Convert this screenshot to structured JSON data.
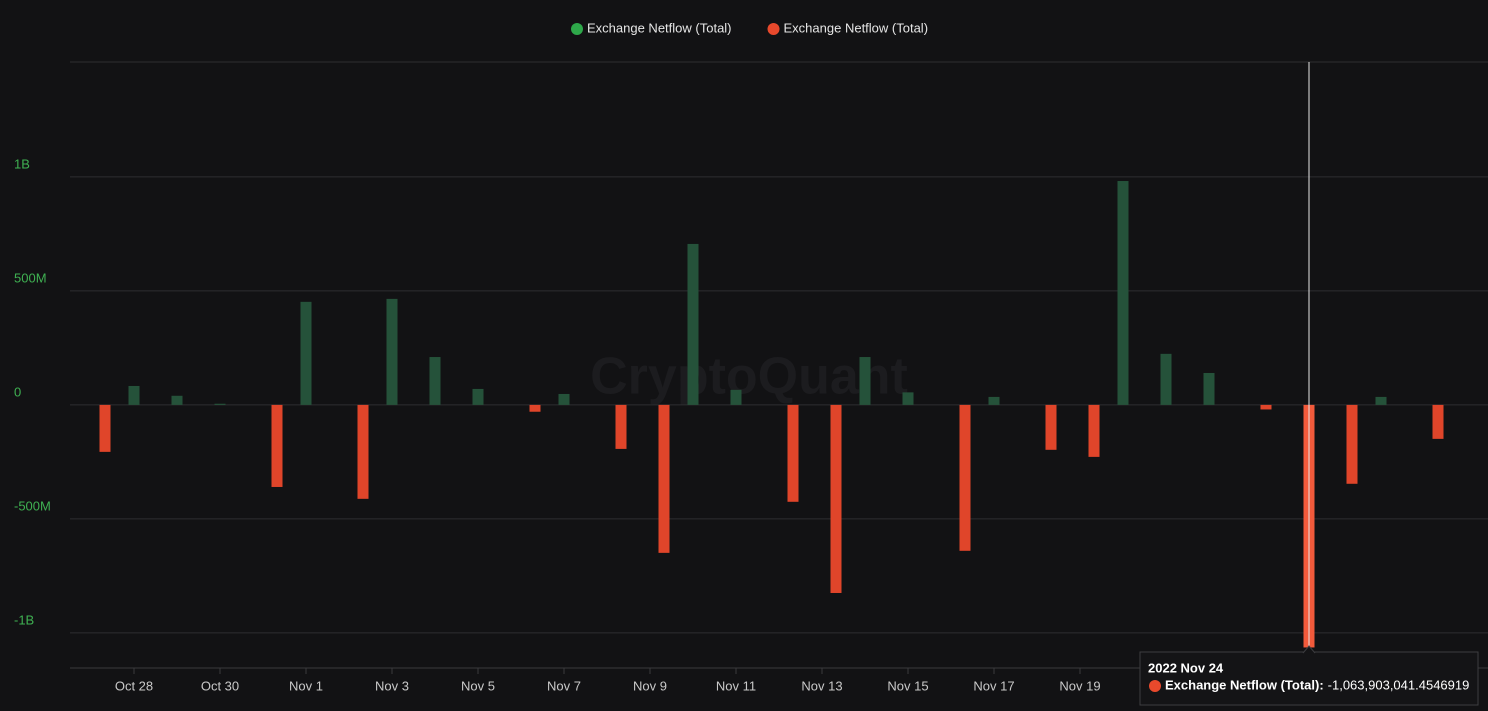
{
  "chart_data": {
    "type": "bar",
    "watermark": "CryptoQuant",
    "categories": [
      null,
      "Oct 28",
      null,
      "Oct 30",
      null,
      "Nov 1",
      null,
      "Nov 3",
      null,
      "Nov 5",
      null,
      "Nov 7",
      null,
      "Nov 9",
      null,
      "Nov 11",
      null,
      "Nov 13",
      null,
      "Nov 15",
      null,
      "Nov 17",
      null,
      "Nov 19",
      null,
      null,
      null,
      null,
      null,
      null,
      null,
      null
    ],
    "series": [
      {
        "name": "Exchange Netflow (Total)",
        "color": "#25523a",
        "legend_color": "#2ea84a",
        "values": [
          null,
          83000000,
          40000000,
          5000000,
          null,
          452000000,
          null,
          465000000,
          210000000,
          70000000,
          null,
          48000000,
          null,
          null,
          706000000,
          66000000,
          null,
          null,
          210000000,
          55000000,
          null,
          35000000,
          null,
          null,
          982000000,
          224000000,
          140000000,
          null,
          null,
          null,
          35000000,
          null
        ]
      },
      {
        "name": "Exchange Netflow (Total)",
        "color": "#e0452a",
        "legend_color": "#e8492c",
        "values": [
          -206000000,
          null,
          null,
          null,
          -360000000,
          null,
          -412000000,
          null,
          null,
          null,
          -30000000,
          null,
          -193000000,
          -649000000,
          null,
          null,
          -425000000,
          -825000000,
          null,
          null,
          -640000000,
          null,
          -197000000,
          -228000000,
          null,
          null,
          null,
          -20000000,
          -1063903041.4546919,
          -346000000,
          null,
          -149000000
        ]
      }
    ],
    "ylim": [
      -1154000000,
      1504000000
    ],
    "yticks": [
      {
        "value": -1000000000,
        "label": "-1B"
      },
      {
        "value": -500000000,
        "label": "-500M"
      },
      0,
      {
        "value": 500000000,
        "label": "500M"
      },
      {
        "value": 1000000000,
        "label": "1B"
      }
    ],
    "grid": true,
    "legend_position": "top",
    "tooltip": {
      "title": "2022 Nov 24",
      "series_label": "Exchange Netflow (Total):",
      "value_label": "-1,063,903,041.4546919",
      "series": 1,
      "index": 28
    }
  }
}
